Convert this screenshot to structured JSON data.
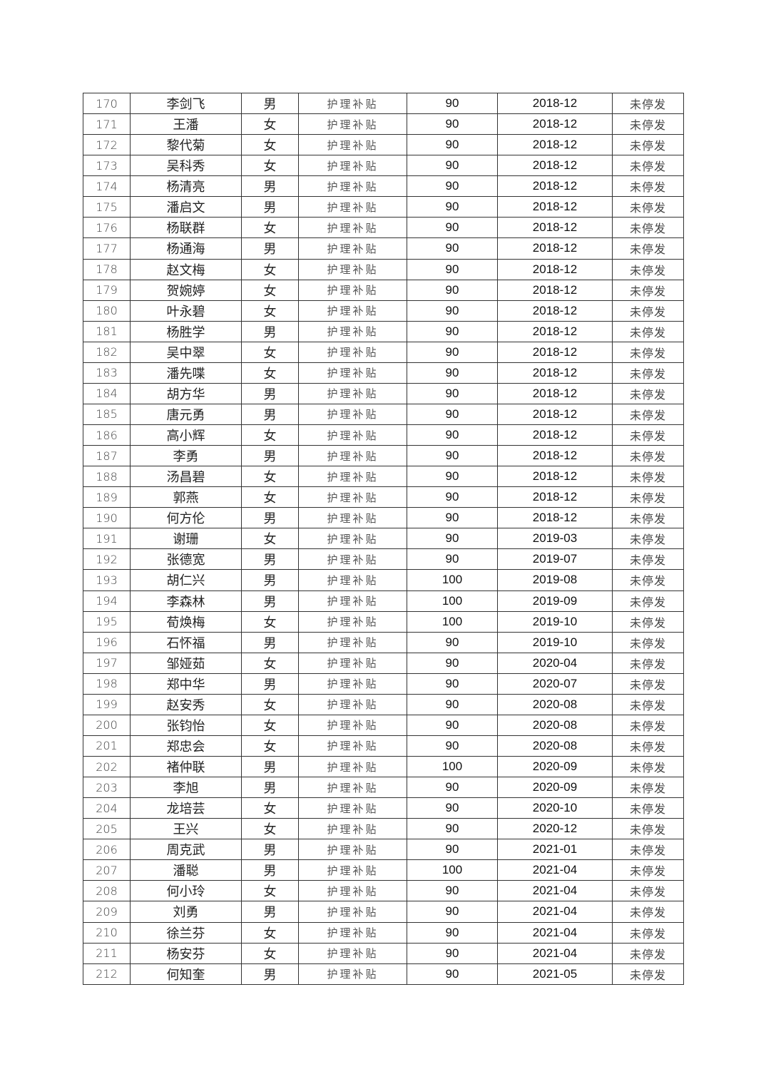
{
  "table": {
    "rows": [
      [
        "170",
        "李剑飞",
        "男",
        "护理补贴",
        "90",
        "2018-12",
        "未停发"
      ],
      [
        "171",
        "王潘",
        "女",
        "护理补贴",
        "90",
        "2018-12",
        "未停发"
      ],
      [
        "172",
        "黎代菊",
        "女",
        "护理补贴",
        "90",
        "2018-12",
        "未停发"
      ],
      [
        "173",
        "吴科秀",
        "女",
        "护理补贴",
        "90",
        "2018-12",
        "未停发"
      ],
      [
        "174",
        "杨清亮",
        "男",
        "护理补贴",
        "90",
        "2018-12",
        "未停发"
      ],
      [
        "175",
        "潘启文",
        "男",
        "护理补贴",
        "90",
        "2018-12",
        "未停发"
      ],
      [
        "176",
        "杨联群",
        "女",
        "护理补贴",
        "90",
        "2018-12",
        "未停发"
      ],
      [
        "177",
        "杨通海",
        "男",
        "护理补贴",
        "90",
        "2018-12",
        "未停发"
      ],
      [
        "178",
        "赵文梅",
        "女",
        "护理补贴",
        "90",
        "2018-12",
        "未停发"
      ],
      [
        "179",
        "贺婉婷",
        "女",
        "护理补贴",
        "90",
        "2018-12",
        "未停发"
      ],
      [
        "180",
        "叶永碧",
        "女",
        "护理补贴",
        "90",
        "2018-12",
        "未停发"
      ],
      [
        "181",
        "杨胜学",
        "男",
        "护理补贴",
        "90",
        "2018-12",
        "未停发"
      ],
      [
        "182",
        "吴中翠",
        "女",
        "护理补贴",
        "90",
        "2018-12",
        "未停发"
      ],
      [
        "183",
        "潘先喋",
        "女",
        "护理补贴",
        "90",
        "2018-12",
        "未停发"
      ],
      [
        "184",
        "胡方华",
        "男",
        "护理补贴",
        "90",
        "2018-12",
        "未停发"
      ],
      [
        "185",
        "唐元勇",
        "男",
        "护理补贴",
        "90",
        "2018-12",
        "未停发"
      ],
      [
        "186",
        "高小辉",
        "女",
        "护理补贴",
        "90",
        "2018-12",
        "未停发"
      ],
      [
        "187",
        "李勇",
        "男",
        "护理补贴",
        "90",
        "2018-12",
        "未停发"
      ],
      [
        "188",
        "汤昌碧",
        "女",
        "护理补贴",
        "90",
        "2018-12",
        "未停发"
      ],
      [
        "189",
        "郭燕",
        "女",
        "护理补贴",
        "90",
        "2018-12",
        "未停发"
      ],
      [
        "190",
        "何方伦",
        "男",
        "护理补贴",
        "90",
        "2018-12",
        "未停发"
      ],
      [
        "191",
        "谢珊",
        "女",
        "护理补贴",
        "90",
        "2019-03",
        "未停发"
      ],
      [
        "192",
        "张德宽",
        "男",
        "护理补贴",
        "90",
        "2019-07",
        "未停发"
      ],
      [
        "193",
        "胡仁兴",
        "男",
        "护理补贴",
        "100",
        "2019-08",
        "未停发"
      ],
      [
        "194",
        "李森林",
        "男",
        "护理补贴",
        "100",
        "2019-09",
        "未停发"
      ],
      [
        "195",
        "荀焕梅",
        "女",
        "护理补贴",
        "100",
        "2019-10",
        "未停发"
      ],
      [
        "196",
        "石怀福",
        "男",
        "护理补贴",
        "90",
        "2019-10",
        "未停发"
      ],
      [
        "197",
        "邹娅茹",
        "女",
        "护理补贴",
        "90",
        "2020-04",
        "未停发"
      ],
      [
        "198",
        "郑中华",
        "男",
        "护理补贴",
        "90",
        "2020-07",
        "未停发"
      ],
      [
        "199",
        "赵安秀",
        "女",
        "护理补贴",
        "90",
        "2020-08",
        "未停发"
      ],
      [
        "200",
        "张钧怡",
        "女",
        "护理补贴",
        "90",
        "2020-08",
        "未停发"
      ],
      [
        "201",
        "郑忠会",
        "女",
        "护理补贴",
        "90",
        "2020-08",
        "未停发"
      ],
      [
        "202",
        "褚仲联",
        "男",
        "护理补贴",
        "100",
        "2020-09",
        "未停发"
      ],
      [
        "203",
        "李旭",
        "男",
        "护理补贴",
        "90",
        "2020-09",
        "未停发"
      ],
      [
        "204",
        "龙培芸",
        "女",
        "护理补贴",
        "90",
        "2020-10",
        "未停发"
      ],
      [
        "205",
        "王兴",
        "女",
        "护理补贴",
        "90",
        "2020-12",
        "未停发"
      ],
      [
        "206",
        "周克武",
        "男",
        "护理补贴",
        "90",
        "2021-01",
        "未停发"
      ],
      [
        "207",
        "潘聪",
        "男",
        "护理补贴",
        "100",
        "2021-04",
        "未停发"
      ],
      [
        "208",
        "何小玲",
        "女",
        "护理补贴",
        "90",
        "2021-04",
        "未停发"
      ],
      [
        "209",
        "刘勇",
        "男",
        "护理补贴",
        "90",
        "2021-04",
        "未停发"
      ],
      [
        "210",
        "徐兰芬",
        "女",
        "护理补贴",
        "90",
        "2021-04",
        "未停发"
      ],
      [
        "211",
        "杨安芬",
        "女",
        "护理补贴",
        "90",
        "2021-04",
        "未停发"
      ],
      [
        "212",
        "何知奎",
        "男",
        "护理补贴",
        "90",
        "2021-05",
        "未停发"
      ]
    ]
  }
}
